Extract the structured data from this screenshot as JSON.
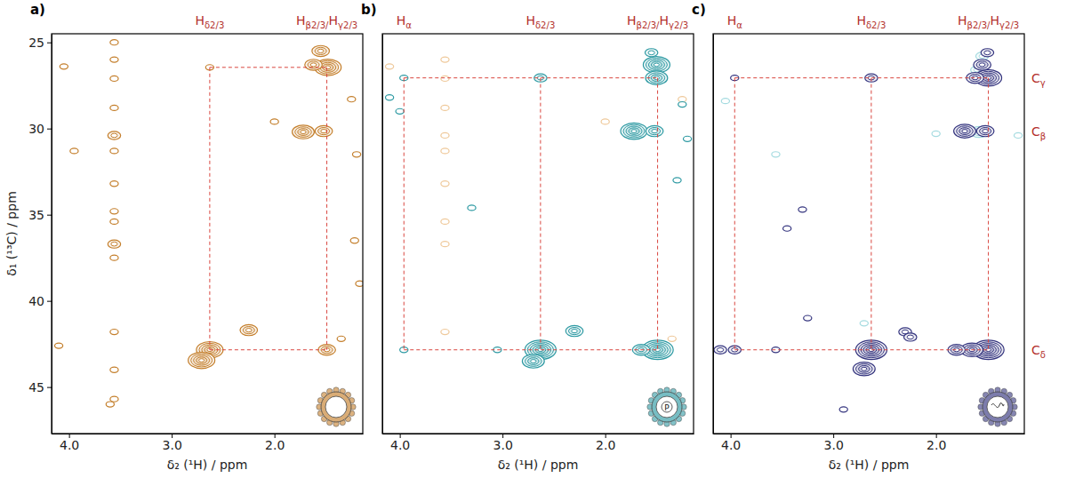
{
  "chart_data": [
    {
      "type": "contour",
      "panel_label": "a)",
      "xlabel": "δ₂ (¹H) / ppm",
      "ylabel": "δ₁ (¹³C) / ppm",
      "xlim": [
        4.17,
        1.14
      ],
      "ylim": [
        24.5,
        47.7
      ],
      "xticks": [
        {
          "value": 4,
          "label": "4.0"
        },
        {
          "value": 3,
          "label": "3.0"
        },
        {
          "value": 2,
          "label": "2.0"
        }
      ],
      "yticks": [
        25,
        30,
        35,
        40,
        45
      ],
      "top_labels": [
        {
          "text": "Hδ2/3",
          "x": 2.63
        },
        {
          "text": "Hβ2/3/Hγ2/3",
          "x": 1.49
        }
      ],
      "guides_y": [
        26.45,
        42.84
      ],
      "series": [
        {
          "color": "#c47f2c",
          "x": [
            2.63,
            2.71,
            2.25,
            1.55,
            1.48,
            1.62,
            1.72,
            1.52,
            1.49,
            2.63,
            3.56,
            3.56,
            3.56,
            3.56,
            3.56,
            3.56,
            3.56,
            3.56,
            3.56,
            3.56,
            3.56,
            3.56,
            3.56,
            3.56,
            4.05,
            3.95,
            4.1,
            1.25,
            1.2,
            1.22,
            1.17,
            1.35,
            2.0,
            3.6
          ],
          "values": [
            42.84,
            43.45,
            41.7,
            25.5,
            26.45,
            26.3,
            30.2,
            30.15,
            42.84,
            26.45,
            25.0,
            26.0,
            27.1,
            28.8,
            30.4,
            31.3,
            33.2,
            34.8,
            35.4,
            36.7,
            37.5,
            41.8,
            44.0,
            45.7,
            26.4,
            31.3,
            42.6,
            28.3,
            31.5,
            36.5,
            39.0,
            42.2,
            29.6,
            46.0
          ],
          "intensity": [
            5,
            5,
            3,
            3,
            5,
            3,
            4,
            3,
            3,
            1,
            1,
            1,
            1,
            1,
            2,
            1,
            1,
            1,
            1,
            2,
            1,
            1,
            1,
            1,
            1,
            1,
            1,
            1,
            1,
            1,
            1,
            1,
            1,
            1
          ]
        }
      ]
    },
    {
      "type": "contour",
      "panel_label": "b)",
      "icon_text": "P",
      "xlabel": "δ₂ (¹H) / ppm",
      "xlim": [
        4.17,
        1.14
      ],
      "ylim": [
        24.5,
        47.7
      ],
      "tick_labels": "x",
      "xticks": [
        {
          "value": 4,
          "label": "4.0"
        },
        {
          "value": 3,
          "label": "3.0"
        },
        {
          "value": 2,
          "label": "2.0"
        }
      ],
      "top_labels": [
        {
          "text": "Hα",
          "x": 3.96
        },
        {
          "text": "Hδ2/3",
          "x": 2.63
        },
        {
          "text": "Hβ2/3/Hγ2/3",
          "x": 1.49
        }
      ],
      "guides_y": [
        27.06,
        42.84
      ],
      "series": [
        {
          "color": "#efc99b",
          "x": [
            3.56,
            3.56,
            3.56,
            3.56,
            3.56,
            3.56,
            3.56,
            3.56,
            3.56,
            1.25,
            1.35,
            2.0,
            4.1
          ],
          "values": [
            26.0,
            27.1,
            28.8,
            30.4,
            31.3,
            33.2,
            35.4,
            36.7,
            41.8,
            28.3,
            42.2,
            29.6,
            26.4
          ],
          "intensity": [
            1,
            1,
            1,
            1,
            1,
            1,
            1,
            1,
            1,
            1,
            1,
            1,
            1
          ]
        },
        {
          "color": "#2e9aa3",
          "x": [
            2.63,
            2.7,
            2.3,
            1.49,
            1.65,
            1.5,
            1.5,
            1.55,
            1.72,
            1.52,
            2.63,
            3.96,
            3.96,
            3.3,
            1.25,
            1.2,
            1.3,
            3.05,
            4.1,
            4.0
          ],
          "values": [
            42.84,
            43.5,
            41.75,
            42.84,
            42.84,
            26.3,
            27.06,
            25.6,
            30.15,
            30.15,
            27.06,
            42.84,
            27.06,
            34.6,
            28.6,
            30.6,
            33.0,
            42.84,
            28.2,
            29.0
          ],
          "intensity": [
            6,
            4,
            3,
            6,
            3,
            5,
            4,
            2,
            5,
            3,
            2,
            1,
            1,
            1,
            1,
            1,
            1,
            1,
            1,
            1
          ]
        }
      ]
    },
    {
      "type": "contour",
      "panel_label": "c)",
      "xlabel": "δ₂ (¹H) / ppm",
      "xlim": [
        4.17,
        1.14
      ],
      "ylim": [
        24.5,
        47.7
      ],
      "tick_labels": "x",
      "xticks": [
        {
          "value": 4,
          "label": "4.0"
        },
        {
          "value": 3,
          "label": "3.0"
        },
        {
          "value": 2,
          "label": "2.0"
        }
      ],
      "top_labels": [
        {
          "text": "Hα",
          "x": 3.96
        },
        {
          "text": "Hδ2/3",
          "x": 2.63
        },
        {
          "text": "Hβ2/3/Hγ2/3",
          "x": 1.49
        }
      ],
      "right_labels": [
        {
          "text": "Cγ",
          "y": 27.06
        },
        {
          "text": "Cβ",
          "y": 30.15
        },
        {
          "text": "Cδ",
          "y": 42.84
        }
      ],
      "guides_y": [
        27.06,
        42.84
      ],
      "series": [
        {
          "color": "#a5dbe0",
          "x": [
            1.55,
            1.58,
            2.0,
            1.2,
            2.7,
            1.6,
            4.05,
            3.56
          ],
          "values": [
            25.8,
            30.2,
            30.3,
            30.4,
            41.3,
            26.6,
            28.4,
            31.5
          ],
          "intensity": [
            2,
            3,
            1,
            1,
            1,
            2,
            1,
            1
          ]
        },
        {
          "color": "#35357f",
          "x": [
            2.63,
            2.7,
            2.3,
            2.25,
            1.49,
            1.65,
            1.8,
            3.96,
            4.1,
            1.49,
            1.62,
            1.55,
            1.5,
            1.72,
            1.52,
            2.63,
            3.96,
            3.3,
            3.45,
            3.56,
            3.25,
            2.9
          ],
          "values": [
            42.84,
            43.95,
            41.8,
            42.1,
            42.84,
            42.84,
            42.84,
            42.84,
            42.84,
            27.06,
            27.06,
            26.3,
            25.6,
            30.15,
            30.15,
            27.06,
            27.06,
            34.7,
            35.8,
            42.84,
            41.0,
            46.3
          ],
          "intensity": [
            6,
            4,
            2,
            2,
            6,
            4,
            3,
            2,
            2,
            5,
            3,
            3,
            2,
            4,
            3,
            2,
            1,
            1,
            1,
            1,
            1,
            1
          ]
        }
      ]
    }
  ]
}
